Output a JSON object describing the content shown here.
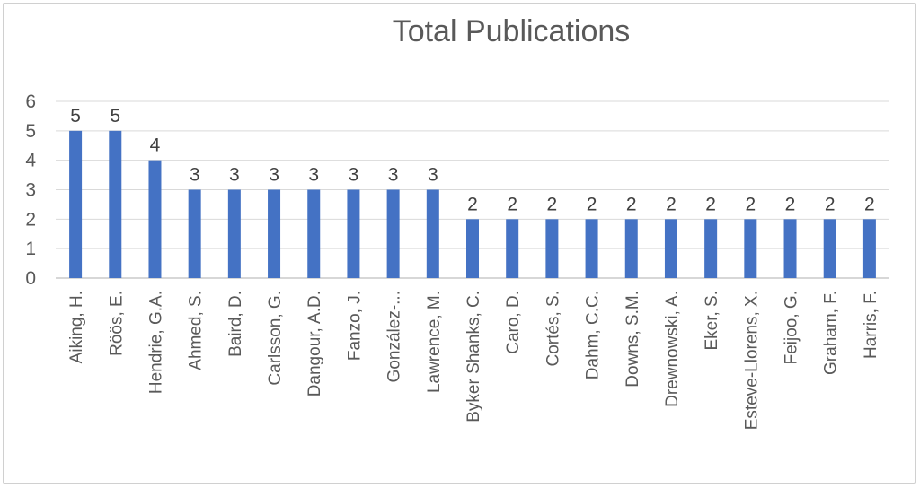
{
  "chart_data": {
    "type": "bar",
    "title": "Total Publications",
    "categories": [
      "Aiking, H.",
      "Röös, E.",
      "Hendrie, G.A.",
      "Ahmed, S.",
      "Baird, D.",
      "Carlsson, G.",
      "Dangour, A.D.",
      "Fanzo, J.",
      "González-...",
      "Lawrence, M.",
      "Byker Shanks, C.",
      "Caro, D.",
      "Cortés, S.",
      "Dahm, C.C.",
      "Downs, S.M.",
      "Drewnowski, A.",
      "Eker, S.",
      "Esteve-Llorens, X.",
      "Feijoo, G.",
      "Graham, F.",
      "Harris, F."
    ],
    "values": [
      5,
      5,
      4,
      3,
      3,
      3,
      3,
      3,
      3,
      3,
      2,
      2,
      2,
      2,
      2,
      2,
      2,
      2,
      2,
      2,
      2
    ],
    "ylim": [
      0,
      6
    ],
    "yticks": [
      0,
      1,
      2,
      3,
      4,
      5,
      6
    ],
    "grid": true,
    "legend": "none",
    "bar_color": "#4472C4"
  }
}
